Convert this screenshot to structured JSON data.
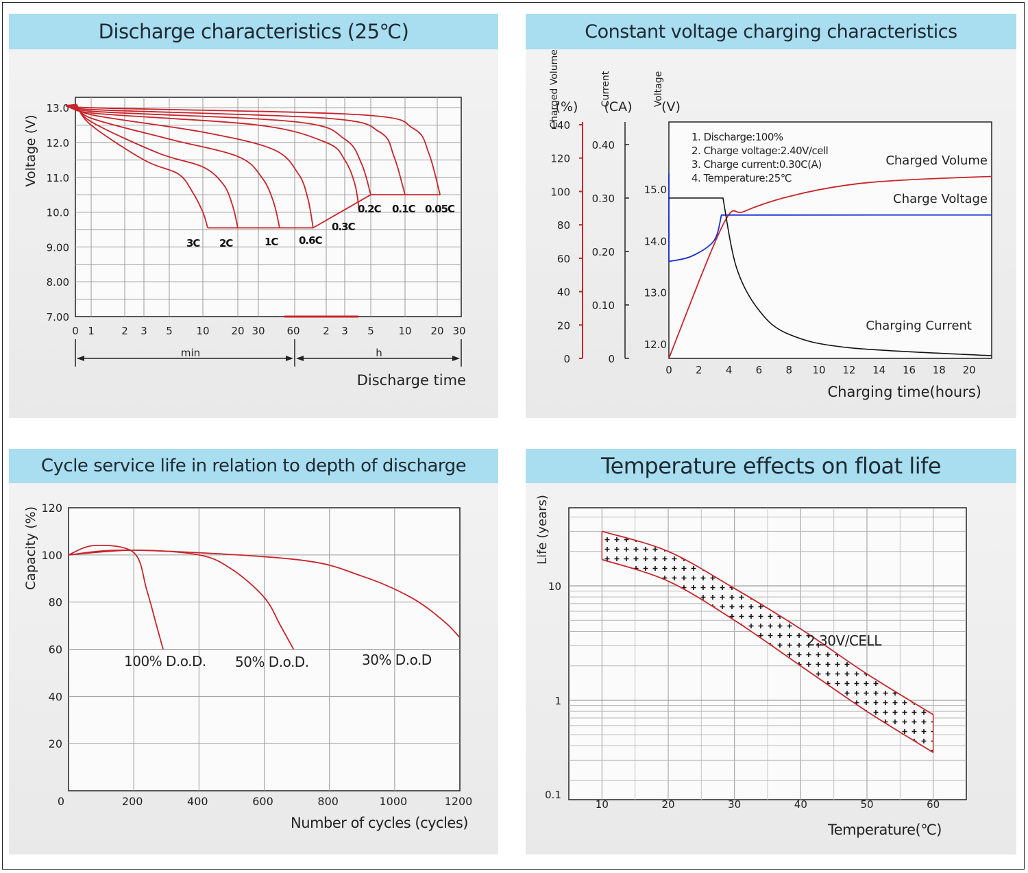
{
  "colors": {
    "title_bg": "#a9ddf0",
    "red": "#c8242a",
    "blue": "#1a2fd0",
    "black": "#111111",
    "grid": "#9a9a9a"
  },
  "chart_data": [
    {
      "type": "line",
      "title": "Discharge characteristics (25℃)",
      "ylabel": "Voltage (V)",
      "xlabel": "Discharge time",
      "x_scale": "log",
      "ylim": [
        7.0,
        13.2
      ],
      "y_ticks": [
        "7.00",
        "8.00",
        "9.00",
        "10.0",
        "11.0",
        "12.0",
        "13.0"
      ],
      "y_tick_values": [
        7,
        8,
        9,
        10,
        11,
        12,
        13
      ],
      "x_ticks": [
        "0",
        "1",
        "2",
        "3",
        "5",
        "10",
        "20",
        "30",
        "60",
        "2",
        "3",
        "5",
        "10",
        "20",
        "30"
      ],
      "x_ranges": {
        "min": "min",
        "h": "h"
      },
      "series": [
        {
          "name": "3C",
          "end_min": 11,
          "points": [
            [
              0.05,
              13.1
            ],
            [
              1,
              12.5
            ],
            [
              3,
              11.5
            ],
            [
              6,
              11.1
            ],
            [
              8,
              10.6
            ],
            [
              10,
              10.0
            ],
            [
              11,
              9.55
            ]
          ]
        },
        {
          "name": "2C",
          "end_min": 20,
          "points": [
            [
              0.05,
              13.1
            ],
            [
              1,
              12.6
            ],
            [
              4,
              11.7
            ],
            [
              10,
              11.3
            ],
            [
              15,
              10.8
            ],
            [
              18,
              10.2
            ],
            [
              20,
              9.55
            ]
          ]
        },
        {
          "name": "1C",
          "end_min": 45,
          "points": [
            [
              0.05,
              13.1
            ],
            [
              1,
              12.7
            ],
            [
              5,
              12.1
            ],
            [
              20,
              11.6
            ],
            [
              32,
              11.0
            ],
            [
              40,
              10.3
            ],
            [
              45,
              9.55
            ]
          ]
        },
        {
          "name": "0.6C",
          "end_min": 90,
          "points": [
            [
              0.05,
              13.1
            ],
            [
              1,
              12.8
            ],
            [
              10,
              12.3
            ],
            [
              40,
              11.8
            ],
            [
              65,
              11.1
            ],
            [
              80,
              10.4
            ],
            [
              90,
              9.55
            ]
          ]
        },
        {
          "name": "0.3C",
          "end_min": 240,
          "points": [
            [
              0.05,
              13.1
            ],
            [
              1,
              12.85
            ],
            [
              30,
              12.5
            ],
            [
              120,
              12.0
            ],
            [
              180,
              11.5
            ],
            [
              220,
              10.8
            ],
            [
              240,
              10.0
            ]
          ]
        },
        {
          "name": "0.2C",
          "end_min": 300,
          "points": [
            [
              0.05,
              13.1
            ],
            [
              1,
              12.9
            ],
            [
              60,
              12.6
            ],
            [
              180,
              12.1
            ],
            [
              250,
              11.4
            ],
            [
              300,
              10.5
            ]
          ]
        },
        {
          "name": "0.1C",
          "end_min": 600,
          "points": [
            [
              0.05,
              13.1
            ],
            [
              1,
              12.95
            ],
            [
              120,
              12.7
            ],
            [
              360,
              12.3
            ],
            [
              480,
              11.6
            ],
            [
              600,
              10.5
            ]
          ]
        },
        {
          "name": "0.05C",
          "end_min": 1260,
          "points": [
            [
              0.05,
              13.1
            ],
            [
              1,
              13.0
            ],
            [
              240,
              12.8
            ],
            [
              720,
              12.4
            ],
            [
              1000,
              11.7
            ],
            [
              1260,
              10.5
            ]
          ]
        }
      ],
      "cutoff_line": [
        [
          11,
          9.55
        ],
        [
          90,
          9.55
        ],
        [
          300,
          10.5
        ],
        [
          1260,
          10.5
        ]
      ]
    },
    {
      "type": "line",
      "title": "Constant voltage charging characteristics",
      "xlabel": "Charging time(hours)",
      "axes": [
        {
          "label_top": "Charged Volume",
          "unit": "(%)",
          "ticks": [
            "140",
            "120",
            "100",
            "80",
            "60",
            "40",
            "20",
            "0"
          ],
          "color": "red"
        },
        {
          "label_top": "Current",
          "unit": "(CA)",
          "ticks": [
            "0.40",
            "0.30",
            "0.20",
            "0.10",
            "0"
          ],
          "color": "black"
        },
        {
          "label_top": "Voltage",
          "unit": "(V)",
          "ticks": [
            "15.0",
            "14.0",
            "13.0",
            "12.0"
          ],
          "color": "black"
        }
      ],
      "x_ticks": [
        "0",
        "2",
        "4",
        "6",
        "8",
        "10",
        "12",
        "14",
        "16",
        "18",
        "20"
      ],
      "conditions": [
        "1. Discharge:100%",
        "2. Charge voltage:2.40V/cell",
        "3. Charge current:0.30C(A)",
        "4. Temperature:25℃"
      ],
      "series": [
        {
          "name": "Charged Volume",
          "unit": "%",
          "points": [
            [
              0,
              0
            ],
            [
              3.6,
              80
            ],
            [
              5,
              88
            ],
            [
              8,
              97
            ],
            [
              12,
              104
            ],
            [
              16,
              107
            ],
            [
              21.5,
              109
            ]
          ]
        },
        {
          "name": "Charge Voltage",
          "unit": "V",
          "points": [
            [
              0,
              13.6
            ],
            [
              1.5,
              13.7
            ],
            [
              3,
              14.0
            ],
            [
              3.5,
              14.5
            ],
            [
              21.5,
              14.5
            ]
          ]
        },
        {
          "name": "Charging Current",
          "unit": "CA",
          "points": [
            [
              0,
              0.3
            ],
            [
              3.6,
              0.3
            ],
            [
              4.5,
              0.17
            ],
            [
              6,
              0.09
            ],
            [
              8,
              0.045
            ],
            [
              12,
              0.02
            ],
            [
              21.5,
              0.005
            ]
          ]
        }
      ]
    },
    {
      "type": "line",
      "title": "Cycle service life in relation to depth of discharge",
      "ylabel": "Capacity (%)",
      "xlabel": "Number of cycles (cycles)",
      "xlim": [
        0,
        1200
      ],
      "ylim": [
        0,
        120
      ],
      "y_ticks": [
        "20",
        "40",
        "60",
        "80",
        "100",
        "120"
      ],
      "x_ticks": [
        "0",
        "200",
        "400",
        "600",
        "800",
        "1000",
        "1200"
      ],
      "series": [
        {
          "name": "100% D.o.D.",
          "points": [
            [
              0,
              100
            ],
            [
              80,
              104
            ],
            [
              200,
              101
            ],
            [
              240,
              85
            ],
            [
              270,
              70
            ],
            [
              290,
              60
            ]
          ]
        },
        {
          "name": "50% D.o.D.",
          "points": [
            [
              0,
              100
            ],
            [
              200,
              102
            ],
            [
              400,
              100
            ],
            [
              500,
              94
            ],
            [
              600,
              82
            ],
            [
              650,
              70
            ],
            [
              690,
              60
            ]
          ]
        },
        {
          "name": "30% D.o.D",
          "points": [
            [
              0,
              100
            ],
            [
              200,
              102
            ],
            [
              700,
              98
            ],
            [
              900,
              91
            ],
            [
              1050,
              82
            ],
            [
              1150,
              72
            ],
            [
              1200,
              65
            ]
          ]
        }
      ]
    },
    {
      "type": "area",
      "title": "Temperature effects on float life",
      "ylabel": "Life (years)",
      "xlabel": "Temperature(℃)",
      "y_scale": "log",
      "ylim": [
        0.1,
        50
      ],
      "xlim": [
        5,
        65
      ],
      "y_ticks": [
        "0.1",
        "1",
        "10"
      ],
      "x_ticks": [
        "10",
        "20",
        "30",
        "40",
        "50",
        "60"
      ],
      "band_label": "2.30V/CELL",
      "upper": [
        [
          10,
          30
        ],
        [
          20,
          20
        ],
        [
          30,
          9.5
        ],
        [
          40,
          4.2
        ],
        [
          50,
          1.7
        ],
        [
          60,
          0.75
        ]
      ],
      "lower": [
        [
          10,
          17
        ],
        [
          20,
          11
        ],
        [
          30,
          5.0
        ],
        [
          40,
          2.0
        ],
        [
          50,
          0.8
        ],
        [
          60,
          0.35
        ]
      ]
    }
  ]
}
